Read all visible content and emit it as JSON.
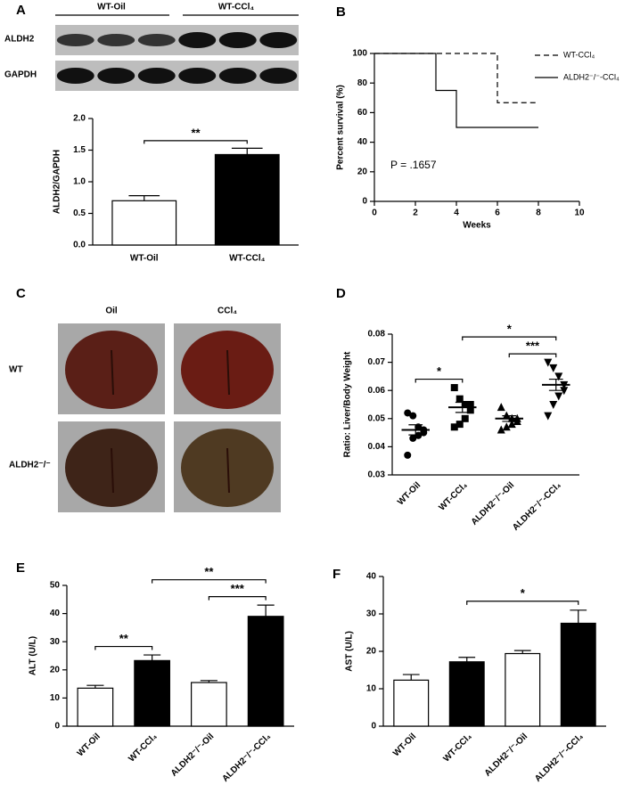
{
  "blot": {
    "panel_label": "A",
    "group_labels": [
      "WT-Oil",
      "WT-CCl₄"
    ],
    "row_labels": [
      "ALDH2",
      "GAPDH"
    ]
  },
  "liver_photos": {
    "panel_label": "C",
    "column_labels": [
      "Oil",
      "CCl₄"
    ],
    "row_labels": [
      "WT",
      "ALDH2⁻/⁻"
    ]
  },
  "chart_data": [
    {
      "type": "bar",
      "ylabel": "ALDH2/GAPDH",
      "categories": [
        "WT-Oil",
        "WT-CCl₄"
      ],
      "values": [
        0.7,
        1.43
      ],
      "errors": [
        0.08,
        0.1
      ],
      "colors": [
        "#ffffff",
        "#000000"
      ],
      "ylim": [
        0,
        2
      ],
      "yticks": [
        {
          "value": 0,
          "label": "0.0"
        },
        {
          "value": 0.5,
          "label": "0.5"
        },
        {
          "value": 1,
          "label": "1.0"
        },
        {
          "value": 1.5,
          "label": "1.5"
        },
        {
          "value": 2,
          "label": "2.0"
        }
      ],
      "brackets": [
        {
          "label": "**",
          "between": [
            0,
            1
          ]
        }
      ]
    },
    {
      "type": "step",
      "panel": "B",
      "ylabel": "Percent survival (%)",
      "xlabel": "Weeks",
      "annotation": "P = .1657",
      "legend": "upper right",
      "series": [
        {
          "name": "WT-CCl₄",
          "dashed": true,
          "color": "#000000",
          "x": [
            0,
            6,
            8
          ],
          "values": [
            100,
            66.7,
            66.7
          ]
        },
        {
          "name": "ALDH2⁻/⁻-CCl₄",
          "dashed": false,
          "color": "#000000",
          "x": [
            0,
            3,
            4,
            8
          ],
          "values": [
            100,
            75,
            50,
            50
          ]
        }
      ],
      "xlim": [
        0,
        10
      ],
      "xticks": [
        0,
        2,
        4,
        6,
        8,
        10
      ],
      "ylim": [
        0,
        100
      ],
      "yticks": [
        0,
        20,
        40,
        60,
        80,
        100
      ]
    },
    {
      "type": "scatter",
      "panel": "D",
      "ylabel": "Ratio: Liver/Body Weight",
      "categories": [
        "WT-Oil",
        "WT-CCl₄",
        "ALDH2⁻/⁻-Oil",
        "ALDH2⁻/⁻-CCl₄"
      ],
      "markers": [
        "circle",
        "square",
        "triangle",
        "triangle-down"
      ],
      "points": [
        [
          0.052,
          0.051,
          0.047,
          0.046,
          0.045,
          0.044,
          0.043,
          0.037
        ],
        [
          0.061,
          0.057,
          0.055,
          0.055,
          0.053,
          0.05,
          0.048,
          0.047
        ],
        [
          0.054,
          0.051,
          0.05,
          0.05,
          0.049,
          0.048,
          0.047,
          0.046
        ],
        [
          0.07,
          0.068,
          0.065,
          0.062,
          0.06,
          0.058,
          0.055,
          0.051
        ]
      ],
      "means": [
        0.046,
        0.054,
        0.05,
        0.062
      ],
      "errors": [
        0.0018,
        0.0018,
        0.001,
        0.002
      ],
      "ylim": [
        0.03,
        0.08
      ],
      "yticks": [
        0.03,
        0.04,
        0.05,
        0.06,
        0.07,
        0.08
      ],
      "brackets": [
        {
          "label": "*",
          "between": [
            0,
            1
          ]
        },
        {
          "label": "***",
          "between": [
            2,
            3
          ]
        },
        {
          "label": "*",
          "between": [
            1,
            3
          ]
        }
      ]
    },
    {
      "type": "bar",
      "panel": "E",
      "ylabel": "ALT (U/L)",
      "categories": [
        "WT-Oil",
        "WT-CCl₄",
        "ALDH2⁻/⁻-Oil",
        "ALDH2⁻/⁻-CCl₄"
      ],
      "values": [
        13.5,
        23.3,
        15.5,
        39
      ],
      "errors": [
        1,
        2,
        0.7,
        4
      ],
      "colors": [
        "#ffffff",
        "#000000",
        "#ffffff",
        "#000000"
      ],
      "ylim": [
        0,
        50
      ],
      "yticks": [
        0,
        10,
        20,
        30,
        40,
        50
      ],
      "brackets": [
        {
          "label": "**",
          "between": [
            0,
            1
          ]
        },
        {
          "label": "***",
          "between": [
            2,
            3
          ]
        },
        {
          "label": "**",
          "between": [
            1,
            3
          ]
        }
      ]
    },
    {
      "type": "bar",
      "panel": "F",
      "ylabel": "AST (U/L)",
      "categories": [
        "WT-Oil",
        "WT-CCl₄",
        "ALDH2⁻/⁻-Oil",
        "ALDH2⁻/⁻-CCl₄"
      ],
      "values": [
        12.3,
        17.2,
        19.4,
        27.5
      ],
      "errors": [
        1.5,
        1.2,
        0.8,
        3.5
      ],
      "colors": [
        "#ffffff",
        "#000000",
        "#ffffff",
        "#000000"
      ],
      "ylim": [
        0,
        40
      ],
      "yticks": [
        0,
        10,
        20,
        30,
        40
      ],
      "brackets": [
        {
          "label": "*",
          "between": [
            1,
            3
          ]
        }
      ]
    }
  ]
}
